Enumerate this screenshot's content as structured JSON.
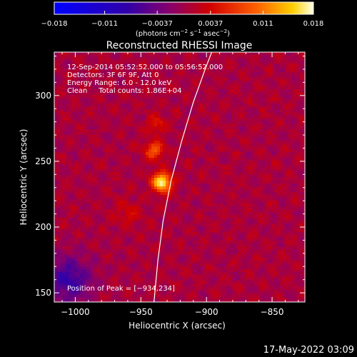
{
  "chart_data": {
    "type": "heatmap",
    "title": "Reconstructed RHESSI Image",
    "xlabel": "Heliocentric X (arcsec)",
    "ylabel": "Heliocentric Y (arcsec)",
    "xlim": [
      -1016,
      -825
    ],
    "ylim": [
      143,
      333
    ],
    "xticks": [
      -1000,
      -950,
      -900,
      -850
    ],
    "xtick_labels": [
      "−1000",
      "−950",
      "−900",
      "−850"
    ],
    "yticks": [
      150,
      200,
      250,
      300
    ],
    "ytick_labels": [
      "150",
      "200",
      "250",
      "300"
    ],
    "colorbar": {
      "min": -0.018,
      "max": 0.018,
      "ticks": [
        -0.018,
        -0.011,
        -0.0037,
        0.0037,
        0.011,
        0.018
      ],
      "tick_labels": [
        "−0.018",
        "−0.011",
        "−0.0037",
        "0.0037",
        "0.011",
        "0.018"
      ],
      "unit_main": "(photons cm",
      "unit_sup1": "−2",
      "unit_mid": " s",
      "unit_sup2": "−1",
      "unit_mid2": " asec",
      "unit_sup3": "−2",
      "unit_end": ")"
    },
    "info_lines": [
      "12-Sep-2014 05:52:52.000 to 05:56:52.000",
      "Detectors: 3F 6F 9F, Att 0",
      "Energy Range: 6.0 - 12.0 keV",
      "Clean     Total counts: 1.86E+04"
    ],
    "peak_label": "Position of Peak = [−934,234]",
    "peak": {
      "x": -934,
      "y": 234
    },
    "limb_curve": [
      {
        "x": -940,
        "y": 143
      },
      {
        "x": -937,
        "y": 175
      },
      {
        "x": -933,
        "y": 205
      },
      {
        "x": -927,
        "y": 235
      },
      {
        "x": -919,
        "y": 265
      },
      {
        "x": -910,
        "y": 295
      },
      {
        "x": -901,
        "y": 320
      },
      {
        "x": -896,
        "y": 333
      }
    ],
    "sources": [
      {
        "x": -934,
        "y": 234,
        "amp": 0.0175,
        "sigma": 5
      },
      {
        "x": -940,
        "y": 258,
        "amp": 0.0085,
        "sigma": 5
      },
      {
        "x": -938,
        "y": 278,
        "amp": 0.0045,
        "sigma": 5
      },
      {
        "x": -960,
        "y": 210,
        "amp": 0.003,
        "sigma": 7
      }
    ],
    "min_region": {
      "x": -1005,
      "y": 160,
      "amp": -0.008,
      "sigma": 12
    }
  },
  "footer": {
    "timestamp": "17-May-2022 03:09"
  }
}
